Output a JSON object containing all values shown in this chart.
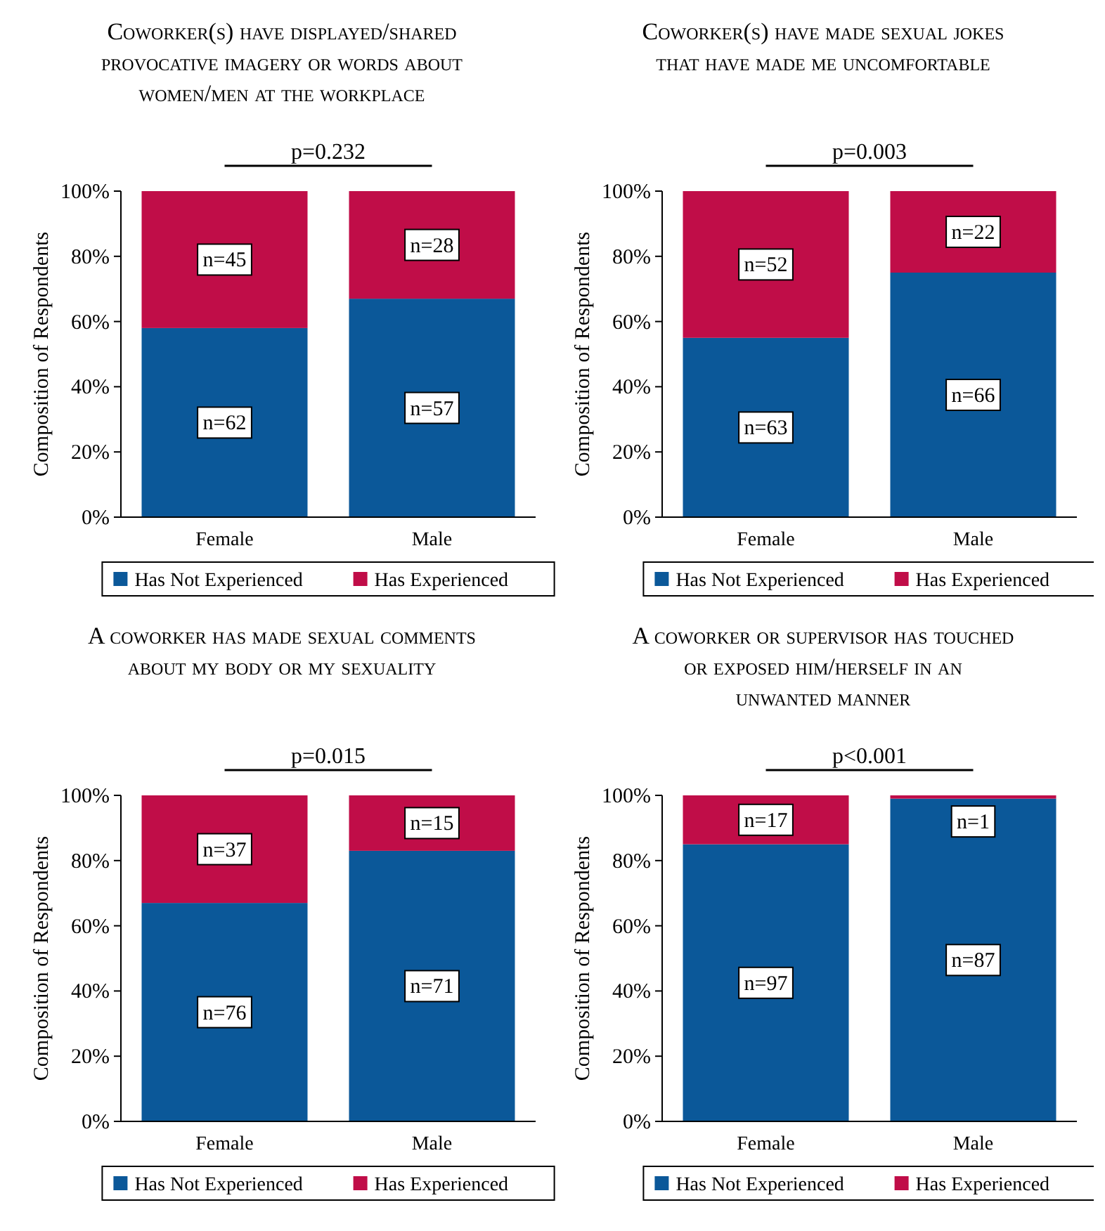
{
  "chart_data": [
    {
      "type": "bar",
      "stacked": true,
      "title": "Coworker(s) have displayed/shared provocative imagery or words about women/men at the workplace",
      "annotations": [
        "p=0.232",
        {
          "text": "n=62",
          "x": "Female",
          "y": 29
        },
        {
          "text": "n=45",
          "x": "Female",
          "y": 79
        },
        {
          "text": "n=57",
          "x": "Male",
          "y": 33.5
        },
        {
          "text": "n=28",
          "x": "Male",
          "y": 83.5
        }
      ],
      "ylabel": "Composition of Respondents",
      "categories": [
        "Female",
        "Male"
      ],
      "ylim": [
        0,
        100
      ],
      "yticks": [
        {
          "value": 0,
          "label": "0%"
        },
        {
          "value": 20,
          "label": "20%"
        },
        {
          "value": 40,
          "label": "40%"
        },
        {
          "value": 60,
          "label": "60%"
        },
        {
          "value": 80,
          "label": "80%"
        },
        {
          "value": 100,
          "label": "100%"
        }
      ],
      "legend": "bottom",
      "series": [
        {
          "name": "Has Not Experienced",
          "color": "#0b5899",
          "values": [
            58,
            67
          ]
        },
        {
          "name": "Has Experienced",
          "color": "#c00d48",
          "values": [
            42,
            33
          ]
        }
      ]
    },
    {
      "type": "bar",
      "stacked": true,
      "title": "Coworker(s) have made sexual jokes that have made me uncomfortable",
      "annotations": [
        "p=0.003",
        {
          "text": "n=63",
          "x": "Female",
          "y": 27.5
        },
        {
          "text": "n=52",
          "x": "Female",
          "y": 77.5
        },
        {
          "text": "n=66",
          "x": "Male",
          "y": 37.5
        },
        {
          "text": "n=22",
          "x": "Male",
          "y": 87.5
        }
      ],
      "ylabel": "Composition of Respondents",
      "categories": [
        "Female",
        "Male"
      ],
      "ylim": [
        0,
        100
      ],
      "yticks": [
        {
          "value": 0,
          "label": "0%"
        },
        {
          "value": 20,
          "label": "20%"
        },
        {
          "value": 40,
          "label": "40%"
        },
        {
          "value": 60,
          "label": "60%"
        },
        {
          "value": 80,
          "label": "80%"
        },
        {
          "value": 100,
          "label": "100%"
        }
      ],
      "legend": "bottom",
      "series": [
        {
          "name": "Has Not Experienced",
          "color": "#0b5899",
          "values": [
            55,
            75
          ]
        },
        {
          "name": "Has Experienced",
          "color": "#c00d48",
          "values": [
            45,
            25
          ]
        }
      ]
    },
    {
      "type": "bar",
      "stacked": true,
      "title": "A coworker has made sexual comments about my body or my sexuality",
      "annotations": [
        "p=0.015",
        {
          "text": "n=76",
          "x": "Female",
          "y": 33.5
        },
        {
          "text": "n=37",
          "x": "Female",
          "y": 83.5
        },
        {
          "text": "n=71",
          "x": "Male",
          "y": 41.5
        },
        {
          "text": "n=15",
          "x": "Male",
          "y": 91.5
        }
      ],
      "ylabel": "Composition of Respondents",
      "categories": [
        "Female",
        "Male"
      ],
      "ylim": [
        0,
        100
      ],
      "yticks": [
        {
          "value": 0,
          "label": "0%"
        },
        {
          "value": 20,
          "label": "20%"
        },
        {
          "value": 40,
          "label": "40%"
        },
        {
          "value": 60,
          "label": "60%"
        },
        {
          "value": 80,
          "label": "80%"
        },
        {
          "value": 100,
          "label": "100%"
        }
      ],
      "legend": "bottom",
      "series": [
        {
          "name": "Has Not Experienced",
          "color": "#0b5899",
          "values": [
            67,
            83
          ]
        },
        {
          "name": "Has Experienced",
          "color": "#c00d48",
          "values": [
            33,
            17
          ]
        }
      ]
    },
    {
      "type": "bar",
      "stacked": true,
      "title": "A coworker or supervisor has touched or exposed him/herself in an unwanted manner",
      "annotations": [
        "p<0.001",
        {
          "text": "n=97",
          "x": "Female",
          "y": 42.5
        },
        {
          "text": "n=17",
          "x": "Female",
          "y": 92.5
        },
        {
          "text": "n=87",
          "x": "Male",
          "y": 49.5
        },
        {
          "text": "n=1",
          "x": "Male",
          "y": 92
        }
      ],
      "ylabel": "Composition of Respondents",
      "categories": [
        "Female",
        "Male"
      ],
      "ylim": [
        0,
        100
      ],
      "yticks": [
        {
          "value": 0,
          "label": "0%"
        },
        {
          "value": 20,
          "label": "20%"
        },
        {
          "value": 40,
          "label": "40%"
        },
        {
          "value": 60,
          "label": "60%"
        },
        {
          "value": 80,
          "label": "80%"
        },
        {
          "value": 100,
          "label": "100%"
        }
      ],
      "legend": "bottom",
      "series": [
        {
          "name": "Has Not Experienced",
          "color": "#0b5899",
          "values": [
            85,
            99
          ]
        },
        {
          "name": "Has Experienced",
          "color": "#c00d48",
          "values": [
            15,
            1
          ]
        }
      ]
    }
  ]
}
